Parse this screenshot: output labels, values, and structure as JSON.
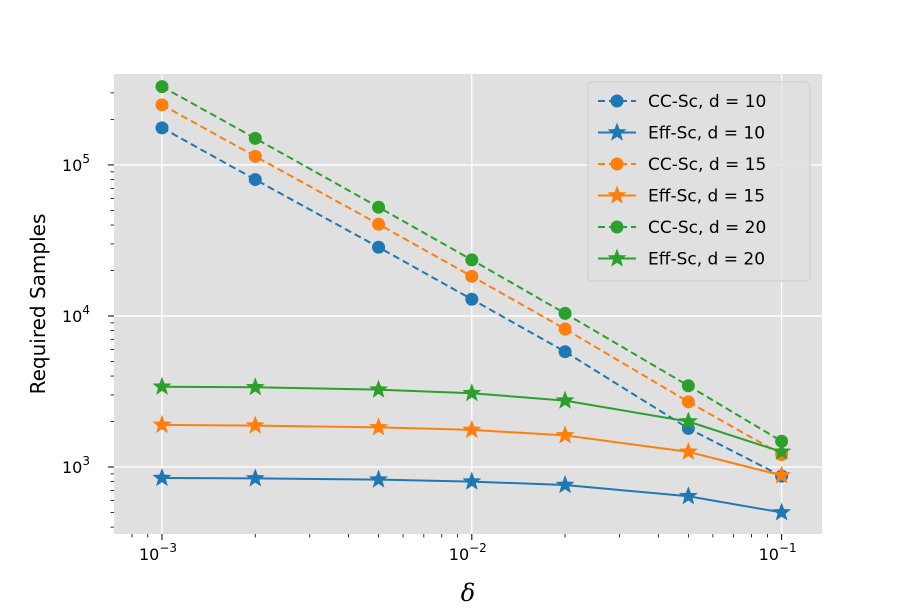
{
  "chart_data": {
    "type": "line",
    "title": "",
    "xlabel": "δ",
    "ylabel": "Required Samples",
    "xscale": "log",
    "yscale": "log",
    "xlim": [
      0.0007,
      0.135
    ],
    "ylim": [
      360,
      400000
    ],
    "grid": true,
    "background": "#e0e0e0",
    "legend_position": "top-right",
    "x": [
      0.001,
      0.002,
      0.005,
      0.01,
      0.02,
      0.05,
      0.1
    ],
    "x_ticks": [
      {
        "value": 0.001,
        "base": "10",
        "exp": "−3"
      },
      {
        "value": 0.01,
        "base": "10",
        "exp": "−2"
      },
      {
        "value": 0.1,
        "base": "10",
        "exp": "−1"
      }
    ],
    "y_ticks": [
      {
        "value": 1000,
        "base": "10",
        "exp": "3"
      },
      {
        "value": 10000,
        "base": "10",
        "exp": "4"
      },
      {
        "value": 100000,
        "base": "10",
        "exp": "5"
      }
    ],
    "series": [
      {
        "name": "CC-Sc, d = 10",
        "color": "#1f77b4",
        "style": "dashed",
        "marker": "circle",
        "values": [
          176000,
          80000,
          28500,
          12900,
          5800,
          1800,
          870
        ]
      },
      {
        "name": "Eff-Sc, d = 10",
        "color": "#1f77b4",
        "style": "solid",
        "marker": "star",
        "values": [
          845,
          840,
          825,
          800,
          760,
          640,
          500
        ]
      },
      {
        "name": "CC-Sc, d = 15",
        "color": "#ff7f0e",
        "style": "dashed",
        "marker": "circle",
        "values": [
          250000,
          114000,
          40500,
          18300,
          8200,
          2700,
          1210
        ]
      },
      {
        "name": "Eff-Sc, d = 15",
        "color": "#ff7f0e",
        "style": "solid",
        "marker": "star",
        "values": [
          1900,
          1880,
          1830,
          1760,
          1620,
          1260,
          880
        ]
      },
      {
        "name": "CC-Sc, d = 20",
        "color": "#2ca02c",
        "style": "dashed",
        "marker": "circle",
        "values": [
          330000,
          150000,
          52500,
          23500,
          10400,
          3450,
          1480
        ]
      },
      {
        "name": "Eff-Sc, d = 20",
        "color": "#2ca02c",
        "style": "solid",
        "marker": "star",
        "values": [
          3400,
          3370,
          3250,
          3080,
          2750,
          2000,
          1260
        ]
      }
    ]
  }
}
